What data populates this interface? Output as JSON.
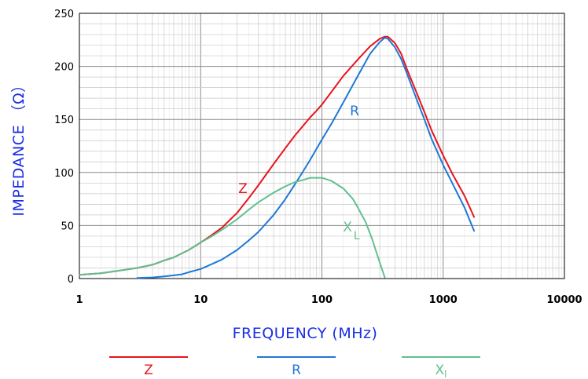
{
  "chart_data": {
    "type": "line",
    "title": "",
    "xlabel": "FREQUENCY (MHz)",
    "ylabel": "IMPEDANCE (Ω)",
    "ylabel_prefix": "IMPEDANCE （",
    "ylabel_symbol": "Ω",
    "ylabel_suffix": "）",
    "x_scale": "log",
    "xlim": [
      1,
      10000
    ],
    "ylim": [
      0,
      250
    ],
    "x_ticks": [
      1,
      10,
      100,
      1000,
      10000
    ],
    "x_tick_labels": [
      "1",
      "10",
      "100",
      "1000",
      "10000"
    ],
    "y_ticks": [
      0,
      50,
      100,
      150,
      200,
      250
    ],
    "y_tick_labels": [
      "0",
      "50",
      "100",
      "150",
      "200",
      "250"
    ],
    "grid": true,
    "legend_position": "bottom",
    "series": [
      {
        "name": "Z",
        "color": "#e8141e",
        "x": [
          1,
          1.5,
          2,
          3,
          4,
          5,
          6,
          8,
          10,
          12,
          15,
          20,
          25,
          30,
          40,
          50,
          60,
          70,
          80,
          90,
          100,
          120,
          150,
          200,
          250,
          300,
          330,
          350,
          400,
          450,
          500,
          600,
          700,
          800,
          1000,
          1200,
          1500,
          1800
        ],
        "y": [
          3.5,
          5,
          7,
          10,
          13,
          17,
          20,
          27,
          34,
          40,
          48,
          62,
          76,
          88,
          108,
          123,
          135,
          144,
          152,
          158,
          164,
          176,
          191,
          207,
          219,
          226,
          228,
          228,
          222,
          212,
          198,
          176,
          157,
          140,
          116,
          98,
          78,
          58
        ]
      },
      {
        "name": "R",
        "color": "#1f78d6",
        "x": [
          3,
          4,
          5,
          6,
          7,
          8,
          10,
          12,
          15,
          20,
          25,
          30,
          40,
          50,
          60,
          70,
          80,
          90,
          100,
          120,
          150,
          200,
          250,
          300,
          330,
          350,
          400,
          450,
          500,
          600,
          700,
          800,
          1000,
          1200,
          1500,
          1800
        ],
        "y": [
          0.5,
          1,
          2,
          3,
          4,
          6,
          9,
          13,
          18,
          27,
          36,
          44,
          60,
          75,
          89,
          101,
          112,
          122,
          131,
          146,
          166,
          192,
          212,
          223,
          227,
          226,
          218,
          207,
          194,
          170,
          150,
          132,
          107,
          89,
          67,
          45
        ]
      },
      {
        "name": "X",
        "name_sub": "L",
        "legend_sub": "l",
        "color": "#60c090",
        "x": [
          1,
          1.5,
          2,
          3,
          4,
          5,
          6,
          8,
          10,
          12,
          15,
          20,
          25,
          30,
          40,
          50,
          60,
          70,
          80,
          90,
          100,
          120,
          150,
          180,
          200,
          230,
          260,
          300,
          330
        ],
        "y": [
          3.5,
          5,
          7,
          10,
          13,
          17,
          20,
          27,
          34,
          39,
          46,
          56,
          65,
          72,
          81,
          87,
          91,
          93,
          95,
          95,
          95,
          92,
          85,
          75,
          66,
          53,
          37,
          15,
          1
        ]
      }
    ]
  }
}
